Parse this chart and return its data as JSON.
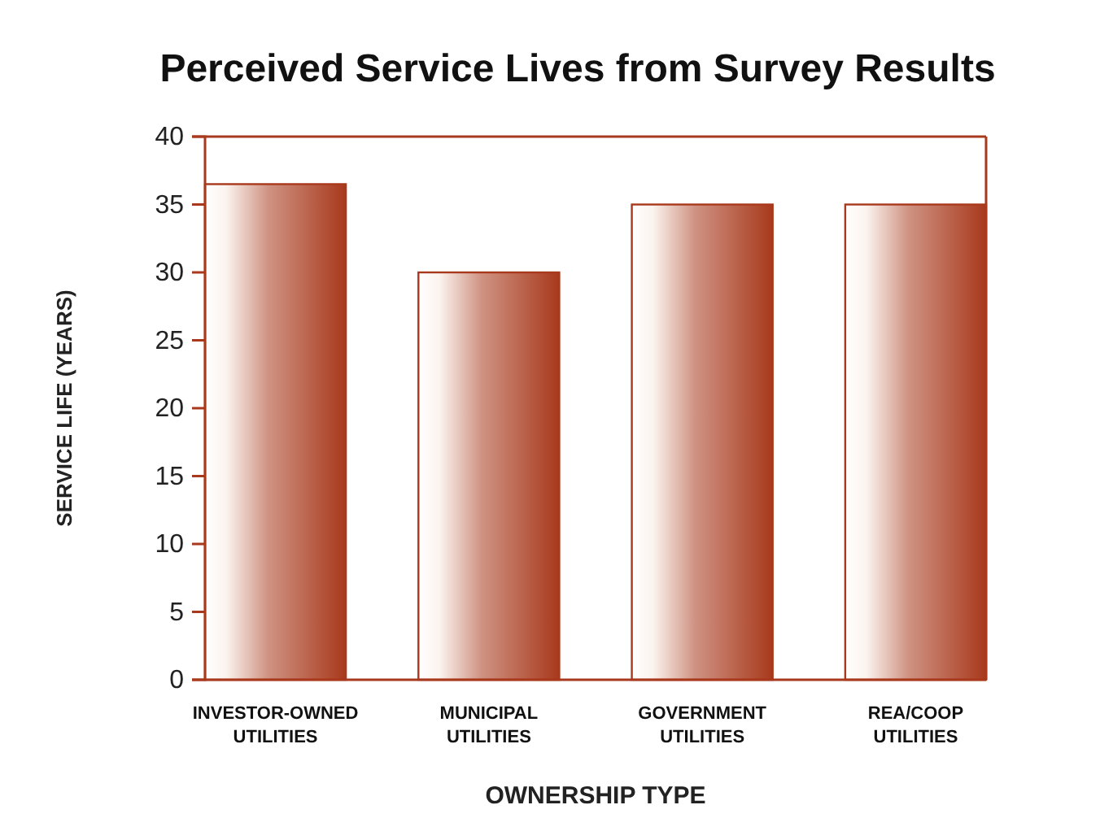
{
  "chart_data": {
    "type": "bar",
    "title": "Perceived Service Lives from Survey Results",
    "categories": [
      "INVESTOR-OWNED\nUTILITIES",
      "MUNICIPAL\nUTILITIES",
      "GOVERNMENT\nUTILITIES",
      "REA/COOP\nUTILITIES"
    ],
    "values": [
      36.5,
      30,
      35,
      35
    ],
    "color": "#a8391c",
    "xlabel": "OWNERSHIP TYPE",
    "ylabel": "SERVICE LIFE (YEARS)",
    "ylim": [
      0,
      40
    ],
    "yticks": [
      0,
      5,
      10,
      15,
      20,
      25,
      30,
      35,
      40
    ],
    "grid": false
  }
}
